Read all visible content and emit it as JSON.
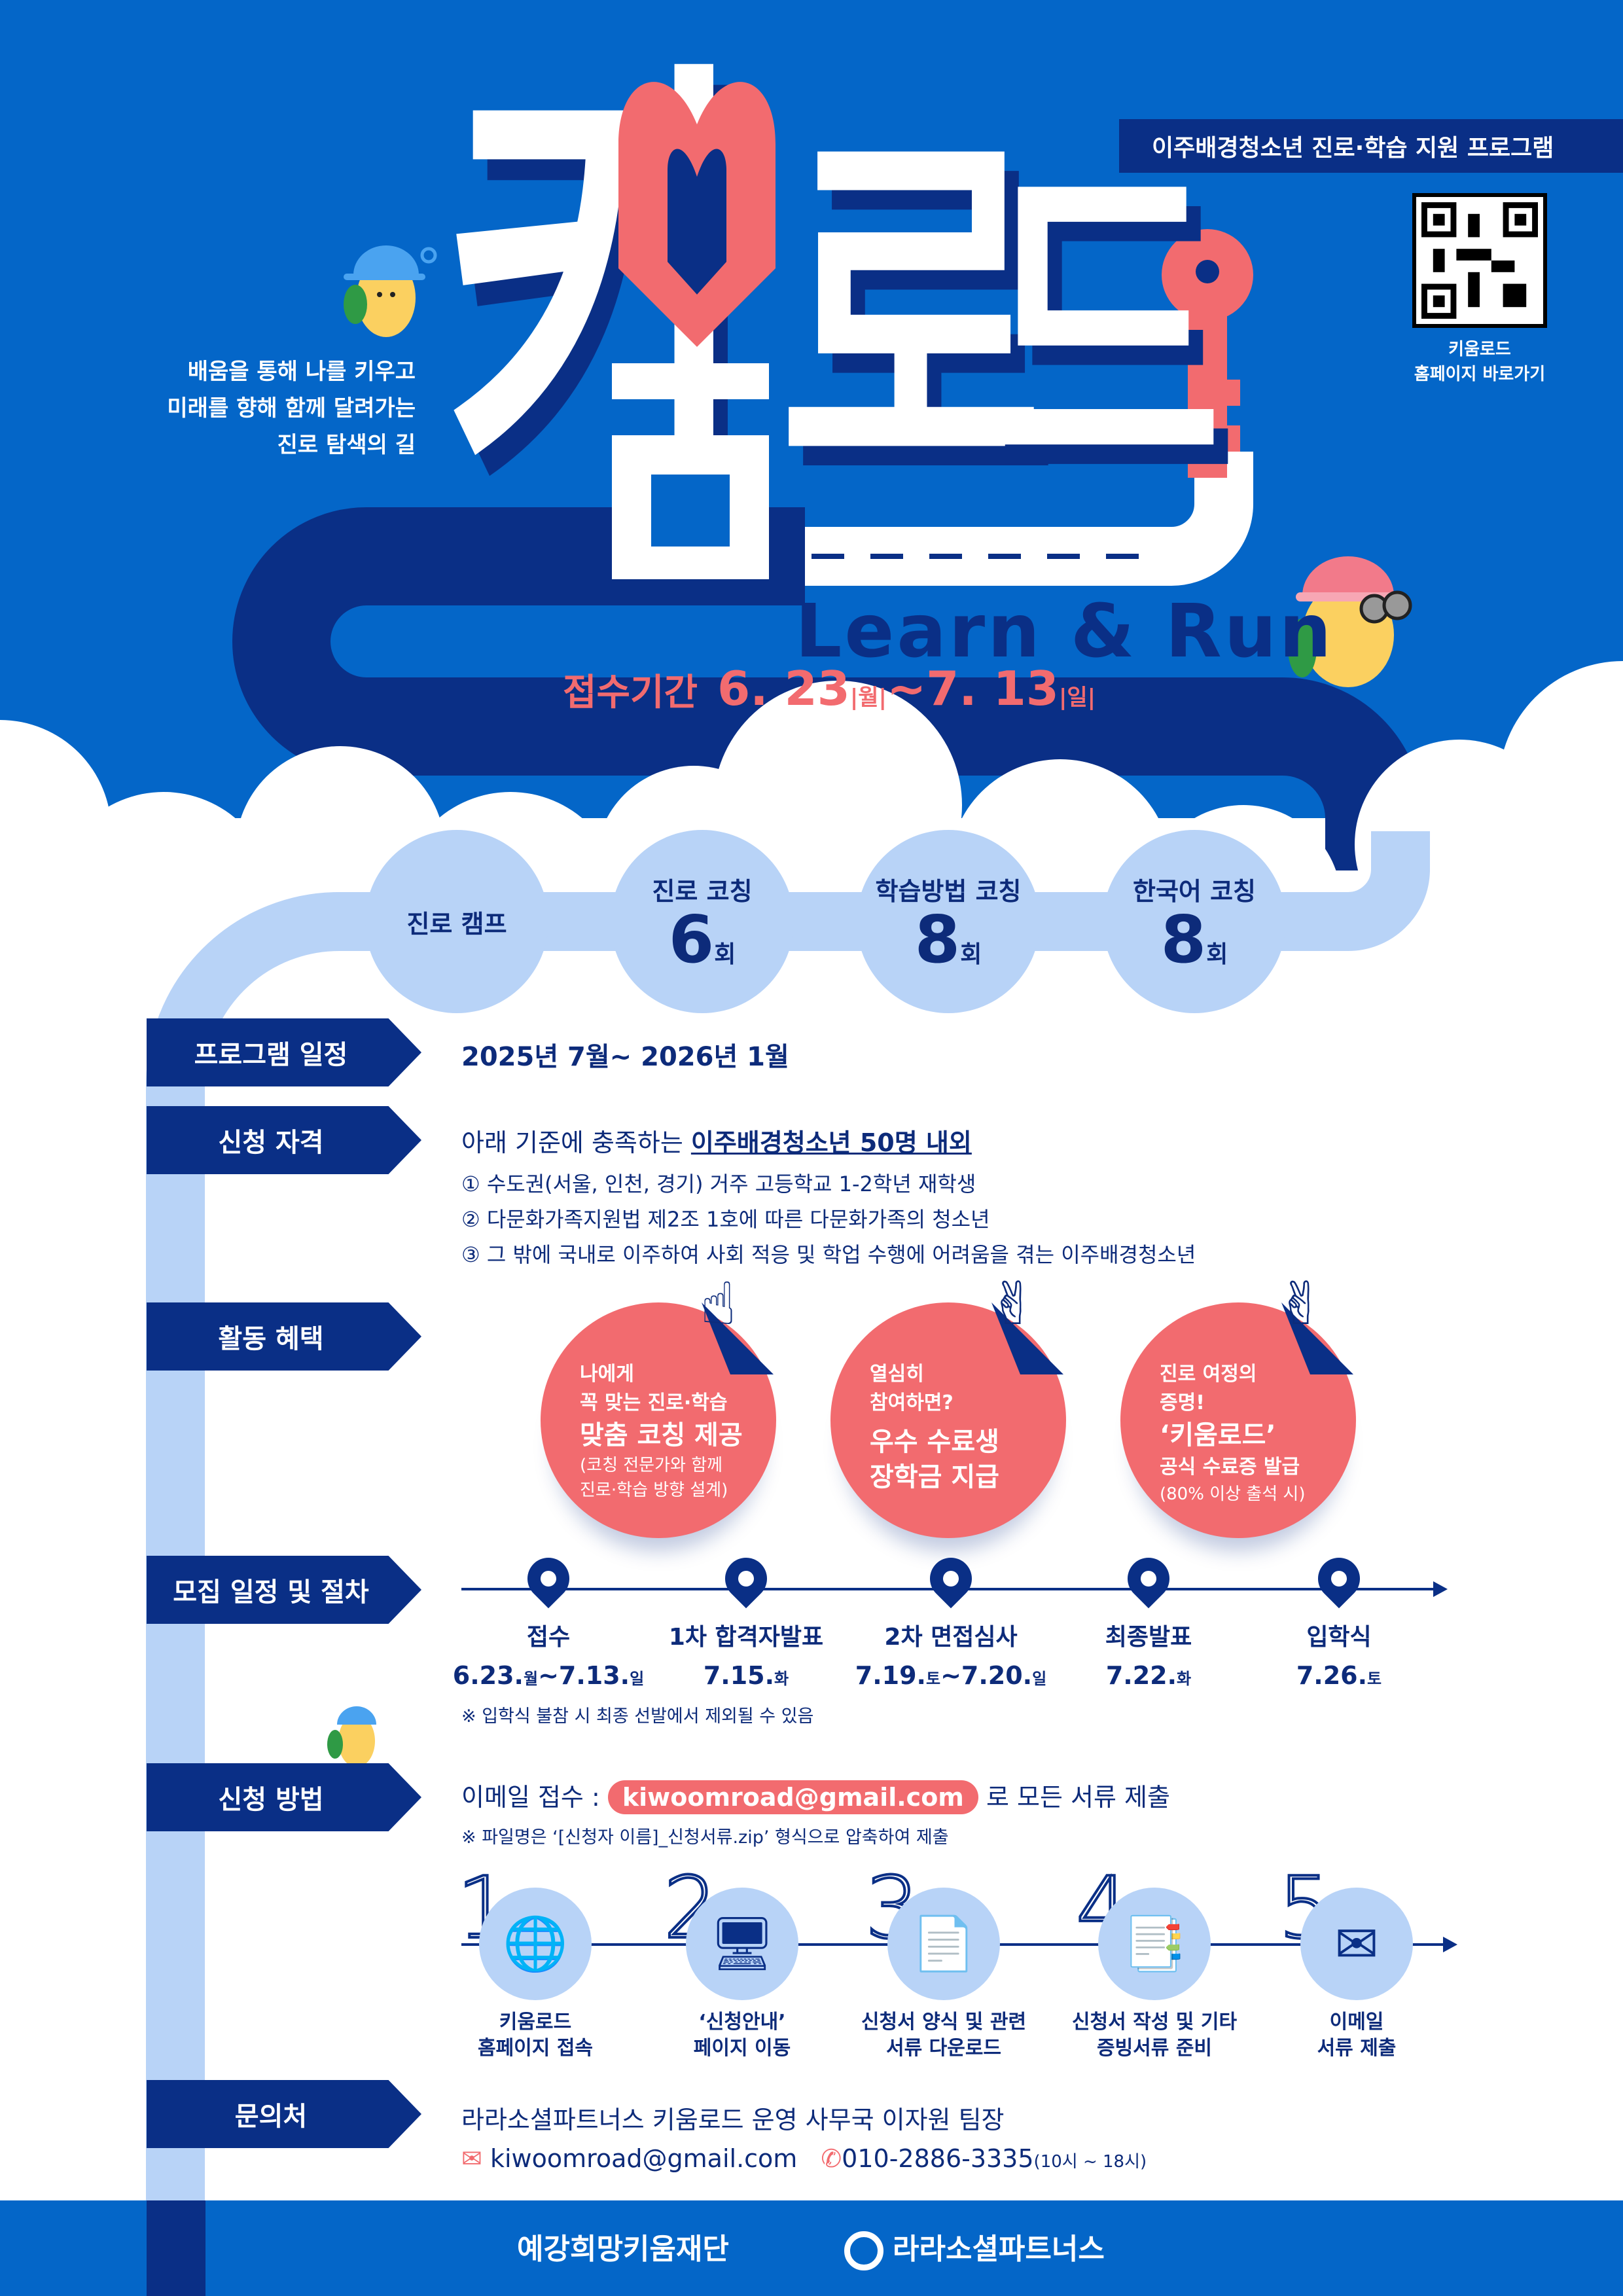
{
  "header": {
    "logo_text": [
      "키",
      "움",
      "로",
      "드"
    ],
    "subtitle_banner": "이주배경청소년 진로·학습 지원 프로그램",
    "qr_label": [
      "키움로드",
      "홈페이지 바로가기"
    ],
    "tagline": [
      "배움을 통해 나를 키우고",
      "미래를 향해 함께 달려가는",
      "진로 탐색의 길"
    ],
    "slogan": "Learn & Run",
    "period": {
      "label": "접수기간",
      "start": "6. 23",
      "start_day": "|월|",
      "sep": "~",
      "end": "7. 13",
      "end_day": "|일|"
    }
  },
  "programs": [
    {
      "title": "진로 캠프",
      "count": "",
      "unit": ""
    },
    {
      "title": "진로 코칭",
      "count": "6",
      "unit": "회"
    },
    {
      "title": "학습방법 코칭",
      "count": "8",
      "unit": "회"
    },
    {
      "title": "한국어 코칭",
      "count": "8",
      "unit": "회"
    }
  ],
  "sections": {
    "schedule": {
      "label": "프로그램 일정",
      "value": "2025년 7월~ 2026년 1월"
    },
    "eligibility": {
      "label": "신청 자격",
      "intro": "아래 기준에 충족하는 ",
      "highlight": "이주배경청소년 50명 내외",
      "items": [
        "① 수도권(서울, 인천, 경기) 거주 고등학교 1-2학년 재학생",
        "② 다문화가족지원법 제2조 1호에 따른 다문화가족의 청소년",
        "③ 그 밖에 국내로 이주하여 사회 적응 및 학업 수행에 어려움을 겪는 이주배경청소년"
      ]
    },
    "benefits": {
      "label": "활동 혜택",
      "cards": [
        {
          "small": [
            "나에게",
            "꼭 맞는 진로·학습"
          ],
          "large": [
            "맞춤 코칭 제공"
          ],
          "note": [
            "(코칭 전문가와 함께",
            "진로·학습 방향 설계)"
          ]
        },
        {
          "small": [
            "열심히",
            "참여하면?"
          ],
          "large": [
            "우수 수료생",
            "장학금 지급"
          ],
          "note": []
        },
        {
          "small": [
            "진로 여정의",
            "증명!"
          ],
          "large": [
            "‘키움로드’"
          ],
          "note": [
            "공식 수료증 발급",
            "(80% 이상 출석 시)"
          ]
        }
      ]
    },
    "recruit": {
      "label": "모집 일정 및 절차",
      "steps": [
        {
          "title": "접수",
          "date": "6.23.",
          "d1": "월",
          "date2": "~7.13.",
          "d2": "일"
        },
        {
          "title": "1차 합격자발표",
          "date": "7.15.",
          "d1": "화",
          "date2": "",
          "d2": ""
        },
        {
          "title": "2차 면접심사",
          "date": "7.19.",
          "d1": "토",
          "date2": "~7.20.",
          "d2": "일"
        },
        {
          "title": "최종발표",
          "date": "7.22.",
          "d1": "화",
          "date2": "",
          "d2": ""
        },
        {
          "title": "입학식",
          "date": "7.26.",
          "d1": "토",
          "date2": "",
          "d2": ""
        }
      ],
      "note": "※ 입학식 불참 시 최종 선발에서 제외될 수 있음"
    },
    "apply": {
      "label": "신청 방법",
      "prefix": "이메일 접수 : ",
      "email": "kiwoomroad@gmail.com",
      "suffix": " 로 모든 서류 제출",
      "note": "※ 파일명은 ‘[신청자 이름]_신청서류.zip’ 형식으로 압축하여 제출",
      "steps": [
        {
          "num": "1",
          "icon": "www-cursor-icon",
          "label": [
            "키움로드",
            "홈페이지 접속"
          ]
        },
        {
          "num": "2",
          "icon": "monitor-icon",
          "label": [
            "‘신청안내’",
            "페이지 이동"
          ]
        },
        {
          "num": "3",
          "icon": "document-download-icon",
          "label": [
            "신청서 양식 및 관련",
            "서류 다운로드"
          ]
        },
        {
          "num": "4",
          "icon": "documents-icon",
          "label": [
            "신청서 작성 및 기타",
            "증빙서류 준비"
          ]
        },
        {
          "num": "5",
          "icon": "email-envelope-icon",
          "label": [
            "이메일",
            "서류 제출"
          ]
        }
      ]
    },
    "contact": {
      "label": "문의처",
      "org": "라라소셜파트너스 키움로드 운영 사무국 이자원 팀장",
      "email": "kiwoomroad@gmail.com",
      "phone": "010-2886-3335",
      "hours": "(10시 ~ 18시)"
    }
  },
  "footer": {
    "logos": [
      "예강희망키움재단",
      "라라소셜파트너스"
    ]
  },
  "colors": {
    "blue": "#0466c8",
    "navy": "#0a2f86",
    "coral": "#f26b6f",
    "light_blue": "#b8d3f7"
  }
}
